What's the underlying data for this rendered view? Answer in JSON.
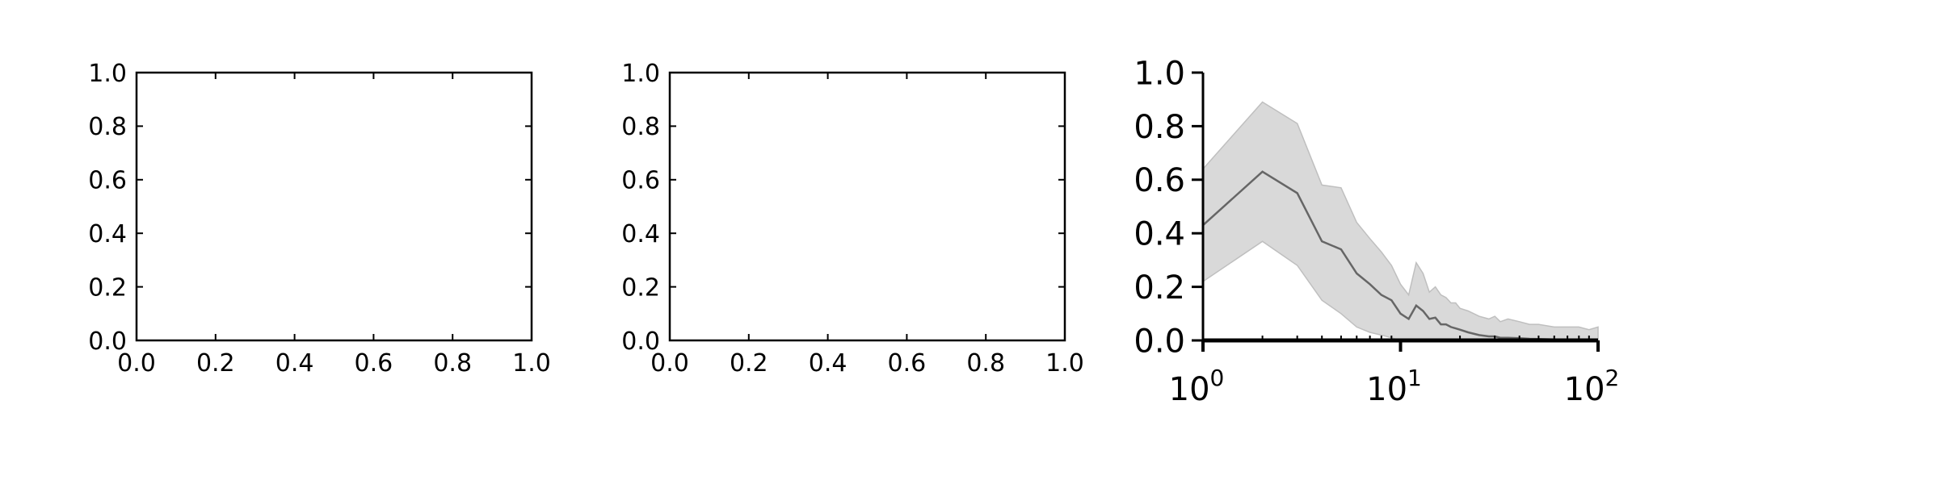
{
  "chart_data": [
    {
      "type": "line",
      "title": "",
      "xlabel": "",
      "ylabel": "",
      "xlim": [
        0,
        1
      ],
      "ylim": [
        0,
        1
      ],
      "xscale": "linear",
      "grid": false,
      "xticks": [
        "0.0",
        "0.2",
        "0.4",
        "0.6",
        "0.8",
        "1.0"
      ],
      "yticks": [
        "0.0",
        "0.2",
        "0.4",
        "0.6",
        "0.8",
        "1.0"
      ],
      "series": []
    },
    {
      "type": "line",
      "title": "",
      "xlabel": "",
      "ylabel": "",
      "xlim": [
        0,
        1
      ],
      "ylim": [
        0,
        1
      ],
      "xscale": "linear",
      "grid": false,
      "xticks": [
        "0.0",
        "0.2",
        "0.4",
        "0.6",
        "0.8",
        "1.0"
      ],
      "yticks": [
        "0.0",
        "0.2",
        "0.4",
        "0.6",
        "0.8",
        "1.0"
      ],
      "series": []
    },
    {
      "type": "area",
      "title": "",
      "xlabel": "",
      "ylabel": "",
      "xlim": [
        1,
        100
      ],
      "ylim": [
        0,
        1
      ],
      "xscale": "log",
      "grid": false,
      "xticks": [
        {
          "base": "10",
          "exp": "0"
        },
        {
          "base": "10",
          "exp": "1"
        },
        {
          "base": "10",
          "exp": "2"
        }
      ],
      "yticks": [
        "0.0",
        "0.2",
        "0.4",
        "0.6",
        "0.8",
        "1.0"
      ],
      "series": [
        {
          "x": [
            1,
            2,
            3,
            4,
            5,
            6,
            7,
            8,
            9,
            10,
            11,
            12,
            13,
            14,
            15,
            16,
            17,
            18,
            19,
            20,
            22,
            25,
            28,
            30,
            32,
            35,
            40,
            45,
            50,
            60,
            70,
            80,
            90,
            100
          ],
          "mean": [
            0.43,
            0.63,
            0.55,
            0.37,
            0.34,
            0.25,
            0.21,
            0.17,
            0.15,
            0.1,
            0.08,
            0.13,
            0.11,
            0.08,
            0.085,
            0.06,
            0.06,
            0.05,
            0.045,
            0.04,
            0.03,
            0.02,
            0.015,
            0.015,
            0.01,
            0.01,
            0.008,
            0.006,
            0.005,
            0.004,
            0.003,
            0.002,
            0.002,
            0.001
          ],
          "upper": [
            0.64,
            0.89,
            0.81,
            0.58,
            0.57,
            0.44,
            0.38,
            0.33,
            0.28,
            0.21,
            0.17,
            0.29,
            0.25,
            0.18,
            0.2,
            0.17,
            0.16,
            0.14,
            0.14,
            0.12,
            0.11,
            0.09,
            0.08,
            0.09,
            0.07,
            0.08,
            0.07,
            0.06,
            0.06,
            0.05,
            0.05,
            0.05,
            0.04,
            0.05
          ],
          "lower": [
            0.22,
            0.37,
            0.28,
            0.15,
            0.1,
            0.05,
            0.03,
            0.02,
            0.01,
            0.0,
            0.0,
            0.0,
            0.0,
            0.0,
            0.0,
            0.0,
            0.0,
            0.0,
            0.0,
            0.0,
            0.0,
            0.0,
            0.0,
            0.0,
            0.0,
            0.0,
            0.0,
            0.0,
            0.0,
            0.0,
            0.0,
            0.0,
            0.0,
            0.0
          ]
        }
      ],
      "colors": {
        "band": "#d9d9d9",
        "band_edge": "#bfbfbf",
        "line": "#666666"
      }
    }
  ]
}
